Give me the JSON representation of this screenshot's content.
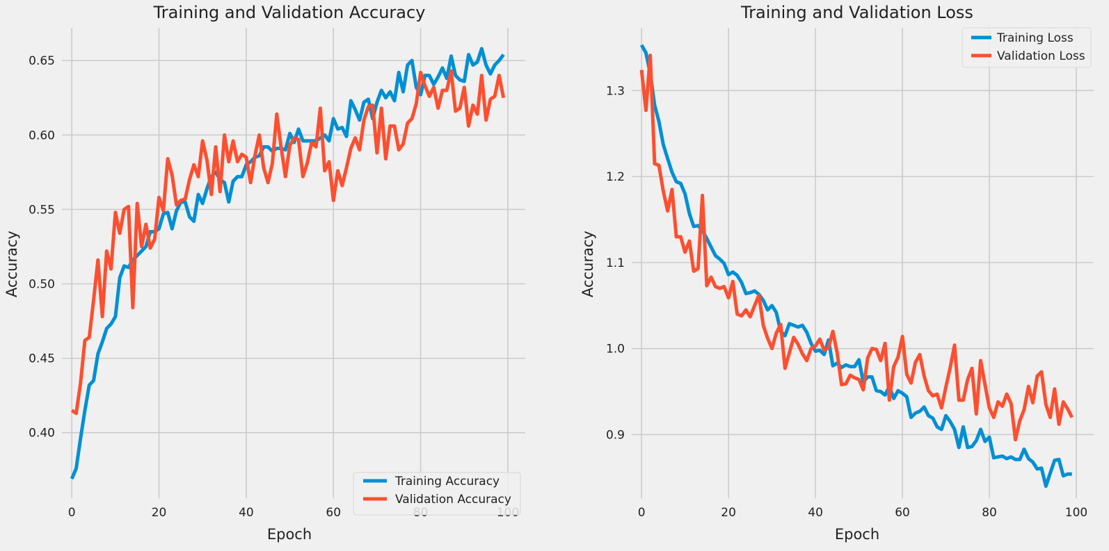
{
  "chart_data": [
    {
      "type": "line",
      "title": "Training and Validation Accuracy",
      "xlabel": "Epoch",
      "ylabel": "Accuracy",
      "xlim": [
        -4.5,
        104
      ],
      "ylim": [
        0.356,
        0.672
      ],
      "xticks": [
        0,
        20,
        40,
        60,
        80,
        100
      ],
      "xtick_labels": [
        "0",
        "20",
        "40",
        "60",
        "80",
        "100"
      ],
      "yticks": [
        0.4,
        0.45,
        0.5,
        0.55,
        0.6,
        0.65
      ],
      "ytick_labels": [
        "0.40",
        "0.45",
        "0.50",
        "0.55",
        "0.60",
        "0.65"
      ],
      "grid": true,
      "legend_position": "bottom-right",
      "x": [
        0,
        1,
        2,
        3,
        4,
        5,
        6,
        7,
        8,
        9,
        10,
        11,
        12,
        13,
        14,
        15,
        16,
        17,
        18,
        19,
        20,
        21,
        22,
        23,
        24,
        25,
        26,
        27,
        28,
        29,
        30,
        31,
        32,
        33,
        34,
        35,
        36,
        37,
        38,
        39,
        40,
        41,
        42,
        43,
        44,
        45,
        46,
        47,
        48,
        49,
        50,
        51,
        52,
        53,
        54,
        55,
        56,
        57,
        58,
        59,
        60,
        61,
        62,
        63,
        64,
        65,
        66,
        67,
        68,
        69,
        70,
        71,
        72,
        73,
        74,
        75,
        76,
        77,
        78,
        79,
        80,
        81,
        82,
        83,
        84,
        85,
        86,
        87,
        88,
        89,
        90,
        91,
        92,
        93,
        94,
        95,
        96,
        97,
        98,
        99
      ],
      "series": [
        {
          "name": "Training Accuracy",
          "color": "#008fd5",
          "values": [
            0.369,
            0.376,
            0.396,
            0.415,
            0.432,
            0.435,
            0.453,
            0.461,
            0.47,
            0.473,
            0.478,
            0.504,
            0.512,
            0.511,
            0.516,
            0.519,
            0.522,
            0.525,
            0.535,
            0.535,
            0.537,
            0.547,
            0.548,
            0.537,
            0.549,
            0.555,
            0.555,
            0.545,
            0.542,
            0.56,
            0.554,
            0.564,
            0.572,
            0.575,
            0.57,
            0.568,
            0.555,
            0.569,
            0.572,
            0.572,
            0.58,
            0.582,
            0.585,
            0.586,
            0.592,
            0.592,
            0.589,
            0.591,
            0.591,
            0.59,
            0.601,
            0.595,
            0.604,
            0.596,
            0.596,
            0.596,
            0.596,
            0.598,
            0.6,
            0.596,
            0.611,
            0.604,
            0.605,
            0.599,
            0.623,
            0.617,
            0.61,
            0.622,
            0.624,
            0.611,
            0.622,
            0.63,
            0.625,
            0.629,
            0.623,
            0.642,
            0.629,
            0.647,
            0.65,
            0.632,
            0.627,
            0.64,
            0.64,
            0.634,
            0.639,
            0.645,
            0.638,
            0.653,
            0.64,
            0.637,
            0.636,
            0.654,
            0.647,
            0.649,
            0.658,
            0.647,
            0.641,
            0.647,
            0.65,
            0.654
          ]
        },
        {
          "name": "Validation Accuracy",
          "color": "#fc4f30",
          "values": [
            0.415,
            0.413,
            0.433,
            0.462,
            0.464,
            0.489,
            0.516,
            0.478,
            0.522,
            0.51,
            0.548,
            0.534,
            0.55,
            0.552,
            0.484,
            0.554,
            0.525,
            0.54,
            0.524,
            0.53,
            0.558,
            0.549,
            0.584,
            0.573,
            0.553,
            0.556,
            0.557,
            0.57,
            0.58,
            0.572,
            0.596,
            0.583,
            0.56,
            0.592,
            0.562,
            0.6,
            0.582,
            0.596,
            0.582,
            0.587,
            0.585,
            0.568,
            0.586,
            0.6,
            0.578,
            0.568,
            0.581,
            0.614,
            0.592,
            0.572,
            0.593,
            0.598,
            0.597,
            0.572,
            0.581,
            0.595,
            0.592,
            0.618,
            0.576,
            0.582,
            0.556,
            0.576,
            0.566,
            0.578,
            0.591,
            0.598,
            0.59,
            0.61,
            0.619,
            0.62,
            0.588,
            0.618,
            0.584,
            0.606,
            0.606,
            0.59,
            0.594,
            0.608,
            0.611,
            0.621,
            0.642,
            0.633,
            0.626,
            0.632,
            0.618,
            0.63,
            0.63,
            0.643,
            0.616,
            0.618,
            0.632,
            0.606,
            0.62,
            0.614,
            0.64,
            0.61,
            0.624,
            0.626,
            0.64,
            0.625
          ]
        }
      ]
    },
    {
      "type": "line",
      "title": "Training and Validation Loss",
      "xlabel": "Epoch",
      "ylabel": "Accuracy",
      "xlim": [
        -4.5,
        104
      ],
      "ylim": [
        0.826,
        1.373
      ],
      "xticks": [
        0,
        20,
        40,
        60,
        80,
        100
      ],
      "xtick_labels": [
        "0",
        "20",
        "40",
        "60",
        "80",
        "100"
      ],
      "yticks": [
        0.9,
        1.0,
        1.1,
        1.2,
        1.3
      ],
      "ytick_labels": [
        "0.9",
        "1.0",
        "1.1",
        "1.2",
        "1.3"
      ],
      "grid": true,
      "legend_position": "top-right",
      "x": [
        0,
        1,
        2,
        3,
        4,
        5,
        6,
        7,
        8,
        9,
        10,
        11,
        12,
        13,
        14,
        15,
        16,
        17,
        18,
        19,
        20,
        21,
        22,
        23,
        24,
        25,
        26,
        27,
        28,
        29,
        30,
        31,
        32,
        33,
        34,
        35,
        36,
        37,
        38,
        39,
        40,
        41,
        42,
        43,
        44,
        45,
        46,
        47,
        48,
        49,
        50,
        51,
        52,
        53,
        54,
        55,
        56,
        57,
        58,
        59,
        60,
        61,
        62,
        63,
        64,
        65,
        66,
        67,
        68,
        69,
        70,
        71,
        72,
        73,
        74,
        75,
        76,
        77,
        78,
        79,
        80,
        81,
        82,
        83,
        84,
        85,
        86,
        87,
        88,
        89,
        90,
        91,
        92,
        93,
        94,
        95,
        96,
        97,
        98,
        99
      ],
      "series": [
        {
          "name": "Training Loss",
          "color": "#008fd5",
          "values": [
            1.353,
            1.344,
            1.32,
            1.283,
            1.264,
            1.237,
            1.221,
            1.205,
            1.194,
            1.192,
            1.18,
            1.157,
            1.142,
            1.143,
            1.137,
            1.128,
            1.118,
            1.108,
            1.104,
            1.099,
            1.086,
            1.089,
            1.085,
            1.077,
            1.064,
            1.065,
            1.067,
            1.063,
            1.056,
            1.045,
            1.05,
            1.042,
            1.02,
            1.015,
            1.029,
            1.027,
            1.025,
            1.027,
            1.019,
            1.006,
            0.997,
            0.998,
            0.993,
            1.01,
            0.98,
            0.983,
            0.978,
            0.981,
            0.979,
            0.979,
            0.987,
            0.961,
            0.967,
            0.967,
            0.951,
            0.95,
            0.946,
            0.956,
            0.942,
            0.951,
            0.948,
            0.944,
            0.92,
            0.925,
            0.927,
            0.932,
            0.922,
            0.919,
            0.909,
            0.906,
            0.922,
            0.915,
            0.906,
            0.885,
            0.909,
            0.885,
            0.886,
            0.893,
            0.906,
            0.892,
            0.897,
            0.873,
            0.874,
            0.875,
            0.872,
            0.874,
            0.871,
            0.871,
            0.883,
            0.872,
            0.868,
            0.86,
            0.861,
            0.84,
            0.855,
            0.87,
            0.871,
            0.852,
            0.854,
            0.854
          ]
        },
        {
          "name": "Validation Loss",
          "color": "#fc4f30",
          "values": [
            1.324,
            1.277,
            1.341,
            1.215,
            1.213,
            1.183,
            1.16,
            1.185,
            1.13,
            1.13,
            1.112,
            1.125,
            1.09,
            1.093,
            1.178,
            1.073,
            1.083,
            1.072,
            1.07,
            1.072,
            1.059,
            1.078,
            1.04,
            1.038,
            1.045,
            1.037,
            1.05,
            1.062,
            1.027,
            1.012,
            1.0,
            1.018,
            1.028,
            0.977,
            0.995,
            1.013,
            1.005,
            0.994,
            0.986,
            1.0,
            1.003,
            1.011,
            0.998,
            1.001,
            1.02,
            0.995,
            0.958,
            0.959,
            0.969,
            0.966,
            0.964,
            0.952,
            0.989,
            1.0,
            0.999,
            0.986,
            1.006,
            0.94,
            0.979,
            0.99,
            1.014,
            0.97,
            0.96,
            0.984,
            0.993,
            0.968,
            0.951,
            0.945,
            0.947,
            0.931,
            0.955,
            0.978,
            1.004,
            0.94,
            0.94,
            0.964,
            0.977,
            0.924,
            0.986,
            0.958,
            0.931,
            0.92,
            0.938,
            0.933,
            0.947,
            0.936,
            0.894,
            0.916,
            0.929,
            0.956,
            0.937,
            0.968,
            0.973,
            0.935,
            0.92,
            0.953,
            0.912,
            0.938,
            0.93,
            0.92
          ]
        }
      ]
    }
  ]
}
